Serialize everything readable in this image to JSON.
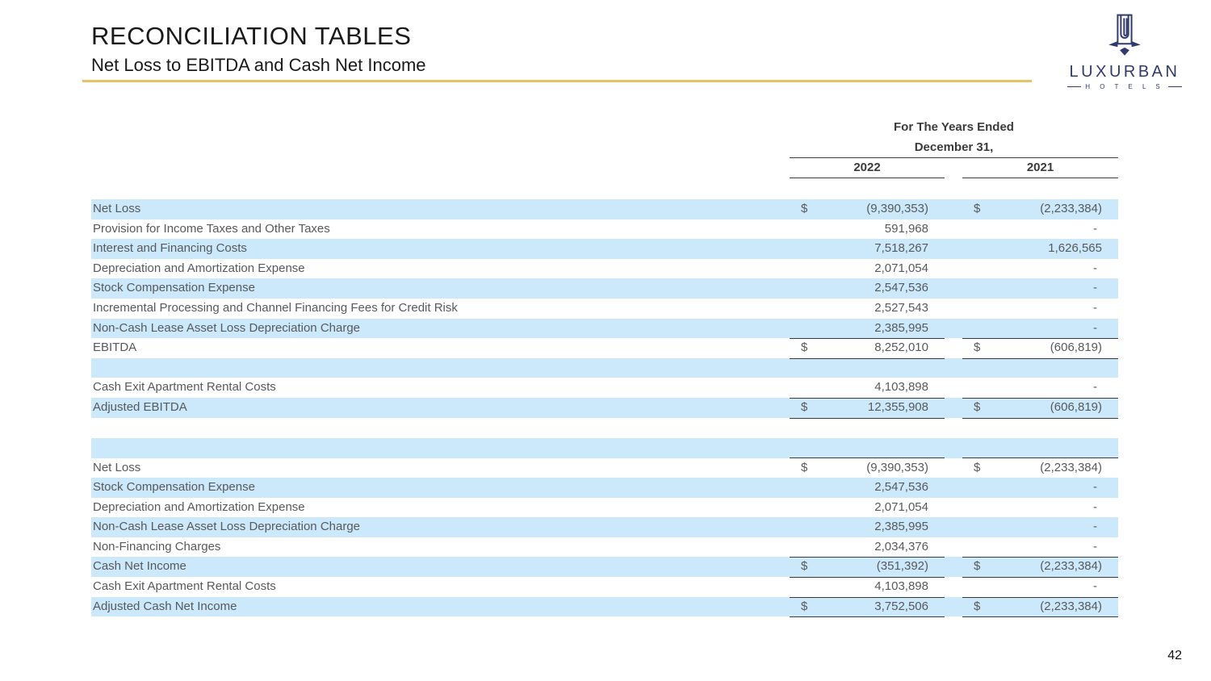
{
  "slide": {
    "title": "RECONCILIATION TABLES",
    "subtitle": "Net Loss to EBITDA and Cash Net Income",
    "page_number": "42",
    "accent_color": "#E7C262",
    "row_highlight_color": "#CBE9FB",
    "logo": {
      "brand": "LUXURBAN",
      "tagline": "H O T E L S",
      "color": "#303A6D"
    }
  },
  "table": {
    "header": {
      "line1": "For The Years Ended",
      "line2": "December 31,",
      "col_2022": "2022",
      "col_2021": "2021"
    },
    "currency_symbol": "$",
    "sections": [
      {
        "name": "net-loss-to-ebitda",
        "rows": [
          {
            "label": "Net Loss",
            "d": true,
            "v2022": "(9,390,353)",
            "v2021": "(2,233,384)",
            "shaded": true
          },
          {
            "label": "Provision for Income Taxes and Other Taxes",
            "v2022": "591,968",
            "v2021": "-",
            "shaded": false
          },
          {
            "label": "Interest and Financing Costs",
            "v2022": "7,518,267",
            "v2021": "1,626,565",
            "shaded": true
          },
          {
            "label": "Depreciation and Amortization Expense",
            "v2022": "2,071,054",
            "v2021": "-",
            "shaded": false
          },
          {
            "label": "Stock Compensation Expense",
            "v2022": "2,547,536",
            "v2021": "-",
            "shaded": true
          },
          {
            "label": "Incremental Processing and Channel Financing Fees for Credit Risk",
            "v2022": "2,527,543",
            "v2021": "-",
            "shaded": false
          },
          {
            "label": "Non-Cash Lease Asset Loss Depreciation Charge",
            "v2022": "2,385,995",
            "v2021": "-",
            "shaded": true,
            "bb": true
          },
          {
            "label": "EBITDA",
            "d": true,
            "v2022": "8,252,010",
            "v2021": "(606,819)",
            "shaded": false,
            "bb": true
          },
          {
            "blank": true,
            "shaded": true
          },
          {
            "label": "Cash Exit Apartment Rental Costs",
            "v2022": "4,103,898",
            "v2021": "-",
            "shaded": false,
            "bb": true
          },
          {
            "label": "Adjusted EBITDA",
            "d": true,
            "v2022": "12,355,908",
            "v2021": "(606,819)",
            "shaded": true,
            "bb": true
          }
        ]
      },
      {
        "name": "net-loss-to-cash-net-income",
        "rows": [
          {
            "blank": true,
            "shaded": true,
            "bb": true
          },
          {
            "label": "Net Loss",
            "d": true,
            "v2022": "(9,390,353)",
            "v2021": "(2,233,384)",
            "shaded": false
          },
          {
            "label": "Stock Compensation Expense",
            "v2022": "2,547,536",
            "v2021": "-",
            "shaded": true
          },
          {
            "label": "Depreciation and Amortization Expense",
            "v2022": "2,071,054",
            "v2021": "-",
            "shaded": false
          },
          {
            "label": "Non-Cash Lease Asset Loss Depreciation Charge",
            "v2022": "2,385,995",
            "v2021": "-",
            "shaded": true
          },
          {
            "label": "Non-Financing Charges",
            "v2022": "2,034,376",
            "v2021": "-",
            "shaded": false,
            "bb": true
          },
          {
            "label": "Cash Net Income",
            "d": true,
            "v2022": "(351,392)",
            "v2021": "(2,233,384)",
            "shaded": true,
            "bb": true
          },
          {
            "label": "Cash Exit Apartment Rental Costs",
            "v2022": "4,103,898",
            "v2021": "-",
            "shaded": false,
            "bb": true
          },
          {
            "label": "Adjusted Cash Net Income",
            "d": true,
            "v2022": "3,752,506",
            "v2021": "(2,233,384)",
            "shaded": true,
            "bb": true
          }
        ]
      }
    ]
  }
}
